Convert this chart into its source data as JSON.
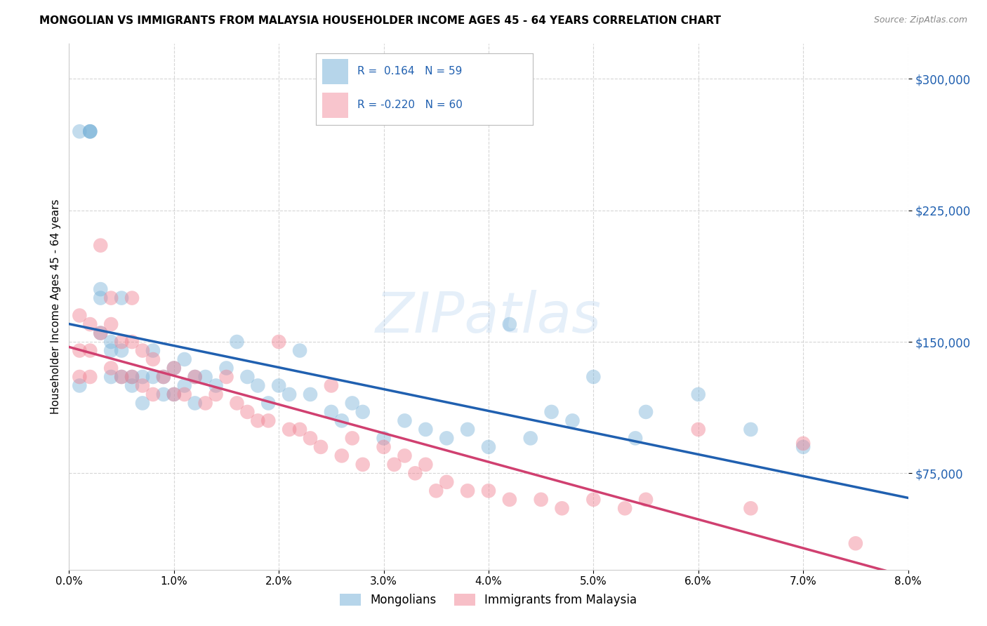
{
  "title": "MONGOLIAN VS IMMIGRANTS FROM MALAYSIA HOUSEHOLDER INCOME AGES 45 - 64 YEARS CORRELATION CHART",
  "source": "Source: ZipAtlas.com",
  "ylabel": "Householder Income Ages 45 - 64 years",
  "watermark": "ZIPatlas",
  "legend_label_mongolians": "Mongolians",
  "legend_label_malaysia": "Immigrants from Malaysia",
  "mongolian_color": "#7ab3d9",
  "malaysia_color": "#f08090",
  "regression_mongolian_color": "#2060b0",
  "regression_malaysia_color": "#d04070",
  "ylim": [
    20000,
    320000
  ],
  "xlim": [
    0.0,
    0.08
  ],
  "yticks": [
    75000,
    150000,
    225000,
    300000
  ],
  "ytick_labels": [
    "$75,000",
    "$150,000",
    "$225,000",
    "$300,000"
  ],
  "xticks": [
    0.0,
    0.01,
    0.02,
    0.03,
    0.04,
    0.05,
    0.06,
    0.07,
    0.08
  ],
  "xtick_labels": [
    "0.0%",
    "1.0%",
    "2.0%",
    "3.0%",
    "4.0%",
    "5.0%",
    "6.0%",
    "7.0%",
    "8.0%"
  ],
  "background_color": "#ffffff",
  "grid_color": "#cccccc",
  "mongolian_R": 0.164,
  "mongolian_N": 59,
  "malaysia_R": -0.22,
  "malaysia_N": 60,
  "mongolian_x": [
    0.001,
    0.001,
    0.002,
    0.002,
    0.002,
    0.003,
    0.003,
    0.003,
    0.004,
    0.004,
    0.004,
    0.005,
    0.005,
    0.005,
    0.006,
    0.006,
    0.007,
    0.007,
    0.008,
    0.008,
    0.009,
    0.009,
    0.01,
    0.01,
    0.011,
    0.011,
    0.012,
    0.012,
    0.013,
    0.014,
    0.015,
    0.016,
    0.017,
    0.018,
    0.019,
    0.02,
    0.021,
    0.022,
    0.023,
    0.025,
    0.026,
    0.027,
    0.028,
    0.03,
    0.032,
    0.034,
    0.036,
    0.038,
    0.04,
    0.042,
    0.044,
    0.046,
    0.048,
    0.05,
    0.054,
    0.055,
    0.06,
    0.065,
    0.07
  ],
  "mongolian_y": [
    125000,
    270000,
    270000,
    270000,
    270000,
    180000,
    175000,
    155000,
    150000,
    145000,
    130000,
    145000,
    175000,
    130000,
    130000,
    125000,
    130000,
    115000,
    145000,
    130000,
    130000,
    120000,
    135000,
    120000,
    140000,
    125000,
    130000,
    115000,
    130000,
    125000,
    135000,
    150000,
    130000,
    125000,
    115000,
    125000,
    120000,
    145000,
    120000,
    110000,
    105000,
    115000,
    110000,
    95000,
    105000,
    100000,
    95000,
    100000,
    90000,
    160000,
    95000,
    110000,
    105000,
    130000,
    95000,
    110000,
    120000,
    100000,
    90000
  ],
  "malaysia_x": [
    0.001,
    0.001,
    0.001,
    0.002,
    0.002,
    0.002,
    0.003,
    0.003,
    0.004,
    0.004,
    0.004,
    0.005,
    0.005,
    0.006,
    0.006,
    0.006,
    0.007,
    0.007,
    0.008,
    0.008,
    0.009,
    0.01,
    0.01,
    0.011,
    0.012,
    0.013,
    0.014,
    0.015,
    0.016,
    0.017,
    0.018,
    0.019,
    0.02,
    0.021,
    0.022,
    0.023,
    0.024,
    0.025,
    0.026,
    0.027,
    0.028,
    0.03,
    0.031,
    0.032,
    0.033,
    0.034,
    0.035,
    0.036,
    0.038,
    0.04,
    0.042,
    0.045,
    0.047,
    0.05,
    0.053,
    0.055,
    0.06,
    0.065,
    0.07,
    0.075
  ],
  "malaysia_y": [
    165000,
    145000,
    130000,
    160000,
    145000,
    130000,
    205000,
    155000,
    175000,
    160000,
    135000,
    150000,
    130000,
    175000,
    150000,
    130000,
    145000,
    125000,
    140000,
    120000,
    130000,
    135000,
    120000,
    120000,
    130000,
    115000,
    120000,
    130000,
    115000,
    110000,
    105000,
    105000,
    150000,
    100000,
    100000,
    95000,
    90000,
    125000,
    85000,
    95000,
    80000,
    90000,
    80000,
    85000,
    75000,
    80000,
    65000,
    70000,
    65000,
    65000,
    60000,
    60000,
    55000,
    60000,
    55000,
    60000,
    100000,
    55000,
    92000,
    35000
  ]
}
